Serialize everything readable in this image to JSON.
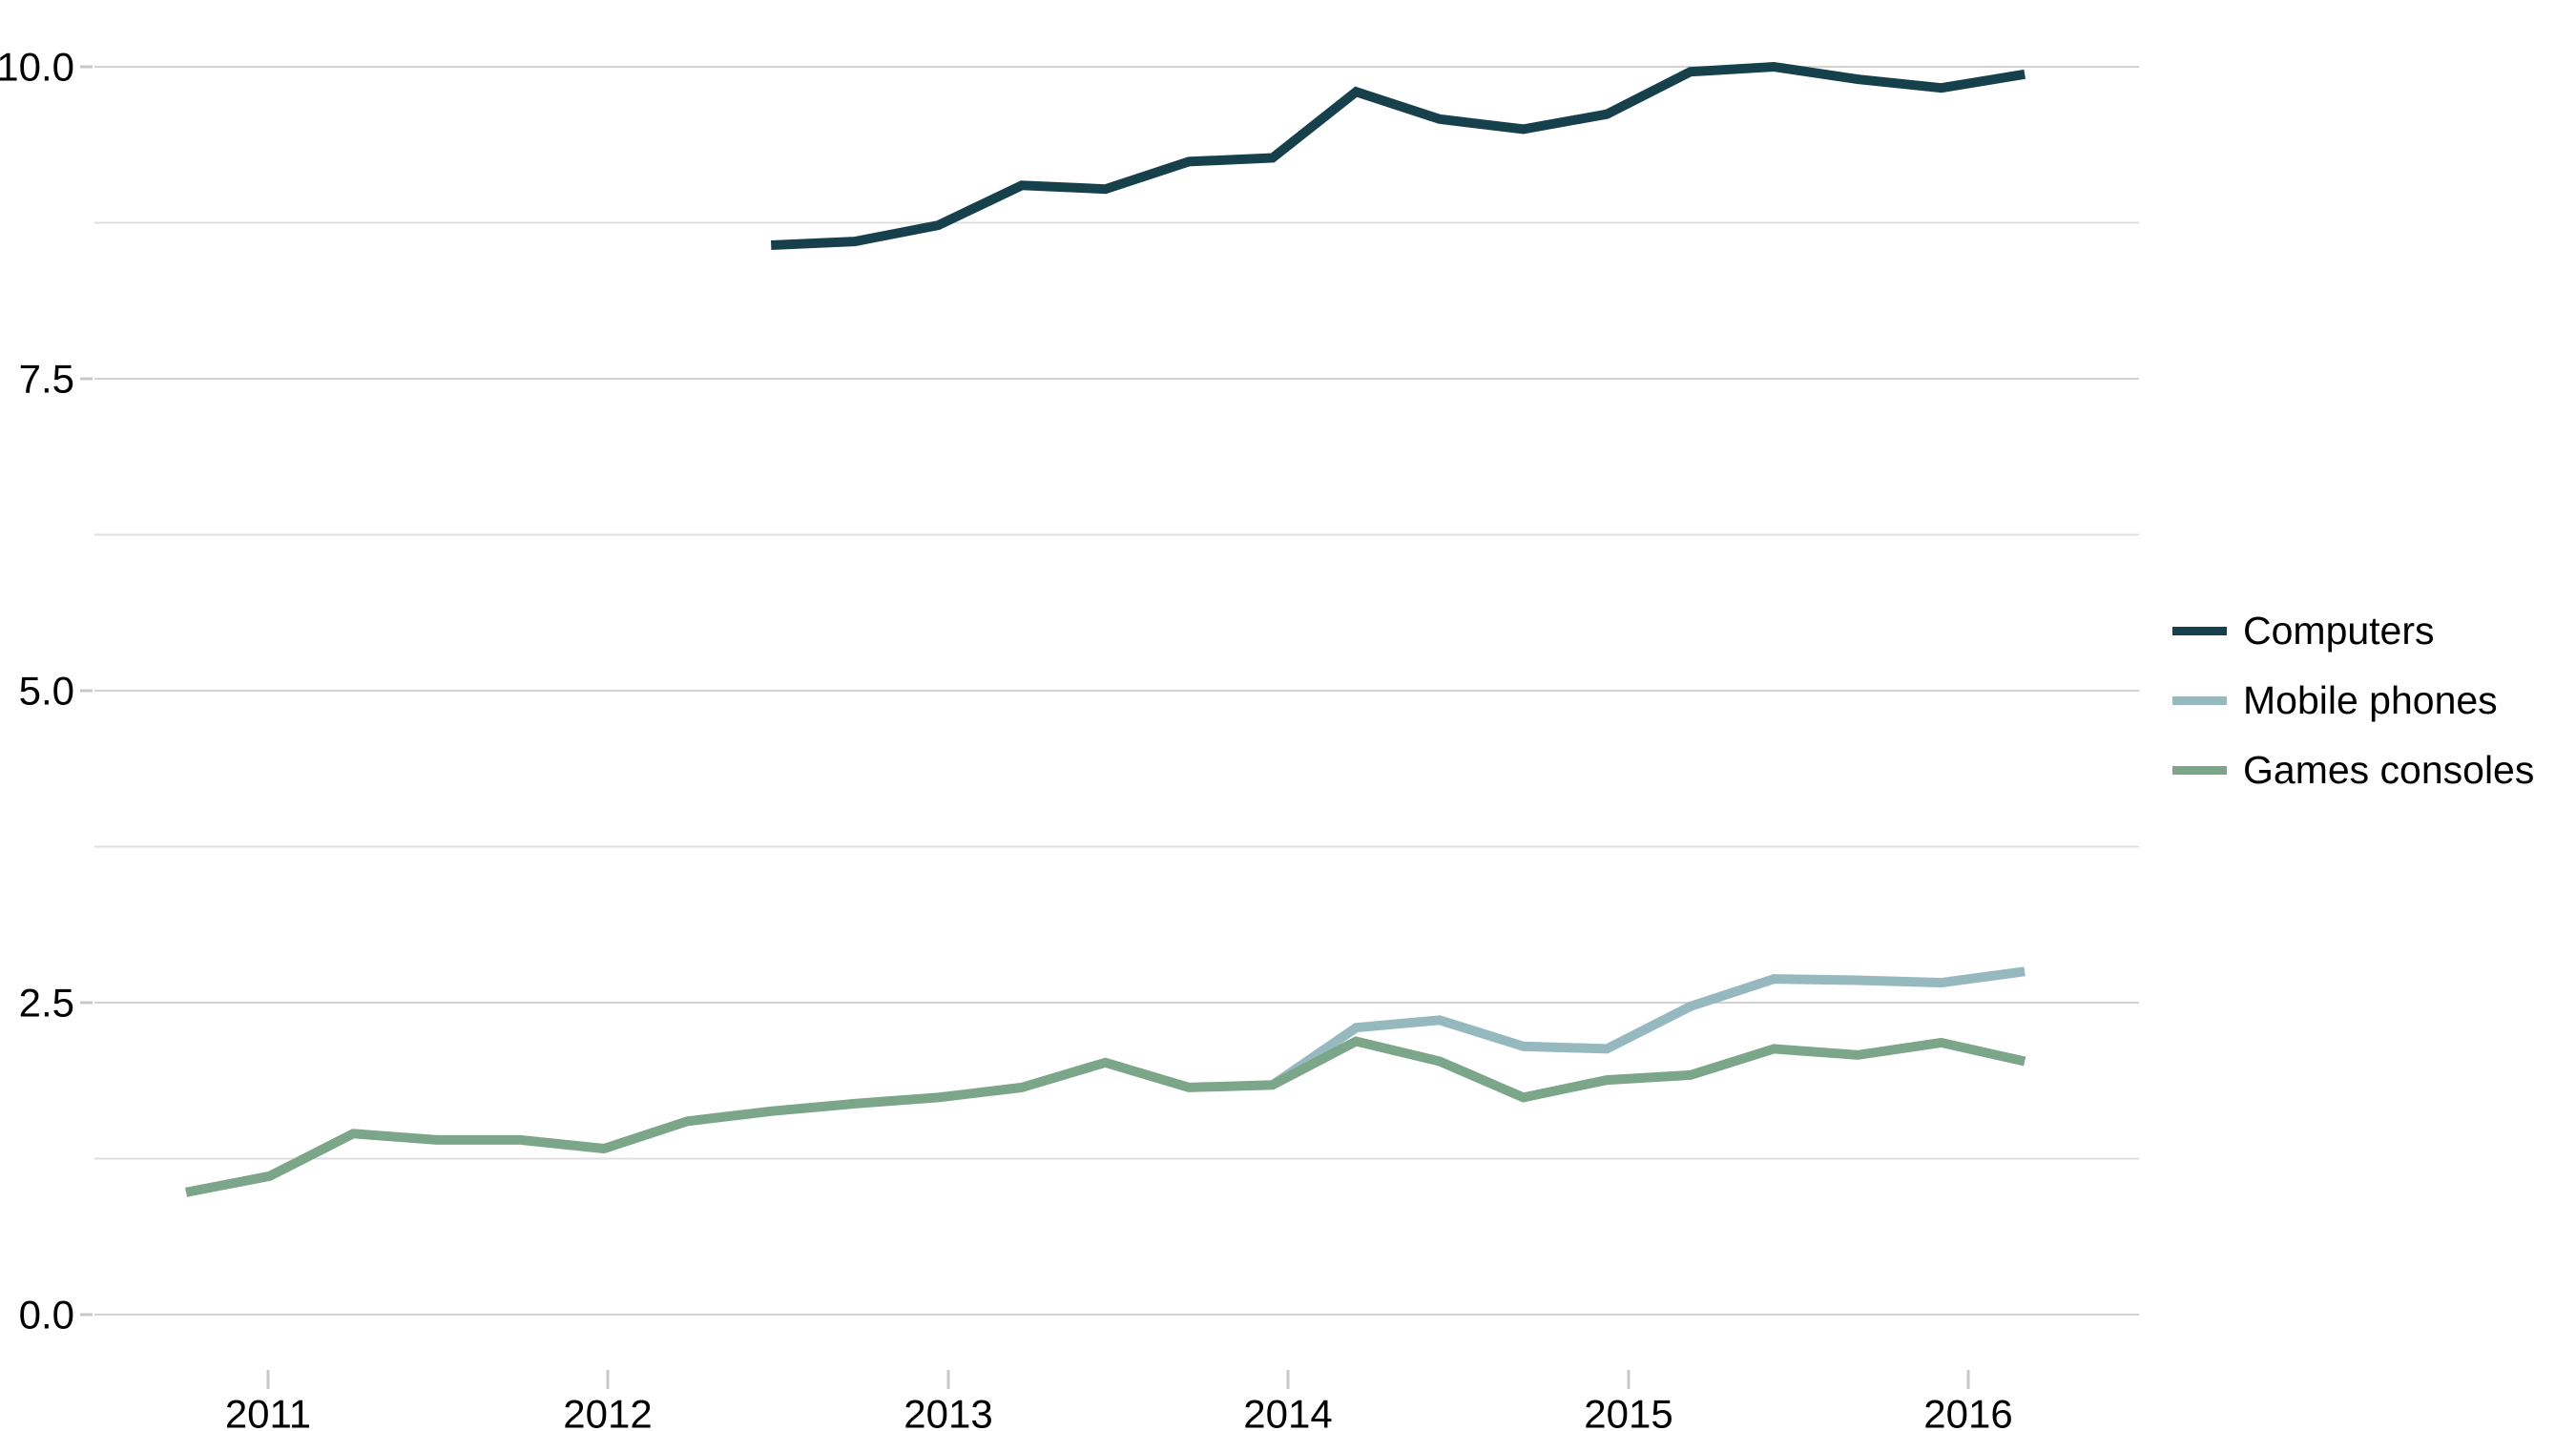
{
  "chart_data": {
    "type": "line",
    "title": "",
    "x_axis": {
      "tick_labels": [
        "2011",
        "2012",
        "2013",
        "2014",
        "2015",
        "2016"
      ]
    },
    "y_axis": {
      "tick_labels": [
        "0.0",
        "2.5",
        "5.0",
        "7.5",
        "10.0"
      ],
      "range": [
        0,
        10
      ],
      "major_interval": 2.5,
      "minor_interval": 1.25
    },
    "x_quarters": [
      "2010 Q4",
      "2011 Q1",
      "2011 Q2",
      "2011 Q3",
      "2011 Q4",
      "2012 Q1",
      "2012 Q2",
      "2012 Q3",
      "2012 Q4",
      "2013 Q1",
      "2013 Q2",
      "2013 Q3",
      "2013 Q4",
      "2014 Q1",
      "2014 Q2",
      "2014 Q3",
      "2014 Q4",
      "2015 Q1",
      "2015 Q2",
      "2015 Q3",
      "2015 Q4",
      "2016 Q1",
      "2016 Q2"
    ],
    "series": [
      {
        "name": "Computers",
        "color": "#16404c",
        "start_quarter": "2012 Q3",
        "values": [
          8.57,
          8.6,
          8.73,
          9.05,
          9.02,
          9.24,
          9.27,
          9.8,
          9.58,
          9.5,
          9.62,
          9.96,
          10.0,
          9.9,
          9.83,
          9.94
        ]
      },
      {
        "name": "Mobile phones",
        "color": "#96b9c0",
        "start_quarter": "2014 Q1",
        "values": [
          1.84,
          2.3,
          2.36,
          2.15,
          2.13,
          2.47,
          2.69,
          2.68,
          2.66,
          2.75
        ]
      },
      {
        "name": "Games consoles",
        "color": "#7ba689",
        "start_quarter": "2010 Q4",
        "values": [
          0.98,
          1.11,
          1.45,
          1.4,
          1.4,
          1.33,
          1.55,
          1.63,
          1.69,
          1.74,
          1.82,
          2.02,
          1.82,
          1.84,
          2.19,
          2.03,
          1.74,
          1.88,
          1.92,
          2.13,
          2.08,
          2.18,
          2.03
        ]
      }
    ],
    "legend": {
      "position": "right",
      "items": [
        "Computers",
        "Mobile phones",
        "Games consoles"
      ]
    },
    "grid": true
  },
  "colors": {
    "background": "#ffffff",
    "grid_major": "#d2d2d2",
    "grid_minor": "#dfdfdf",
    "tick": "#c8c8c8",
    "text": "#000000"
  }
}
